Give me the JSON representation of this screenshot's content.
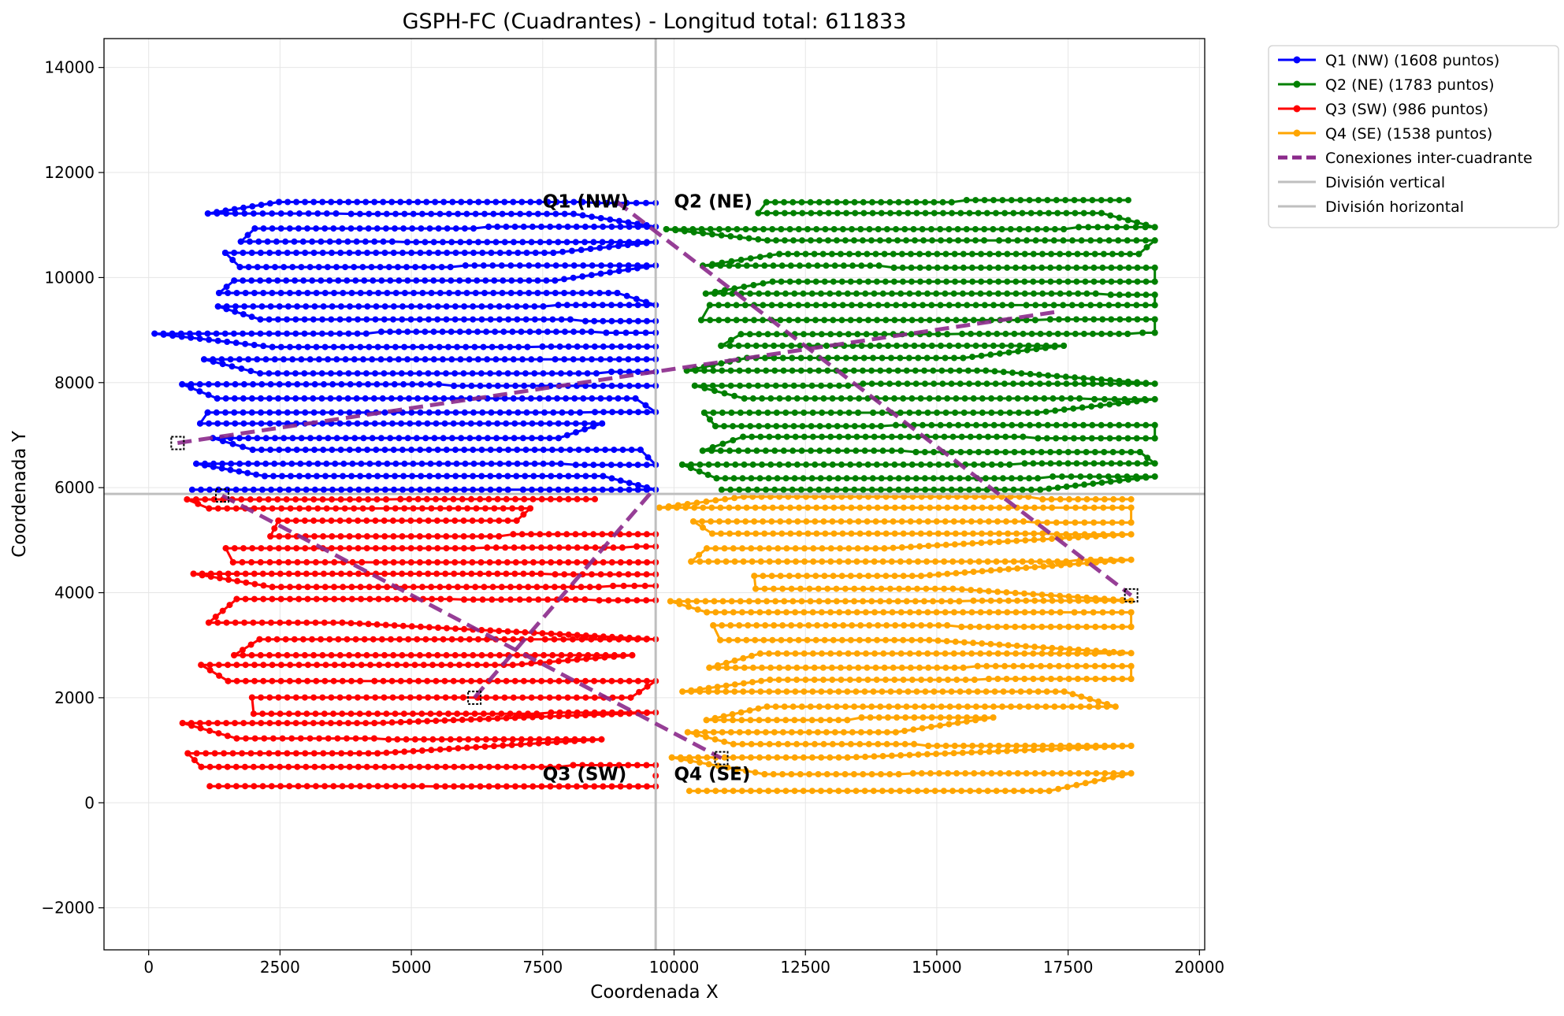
{
  "chart_data": {
    "type": "line",
    "title": "GSPH-FC (Cuadrantes) - Longitud total: 611833",
    "xlabel": "Coordenada X",
    "ylabel": "Coordenada Y",
    "xlim": [
      -850,
      20100
    ],
    "ylim": [
      -2800,
      14550
    ],
    "xticks": [
      0,
      2500,
      5000,
      7500,
      10000,
      12500,
      15000,
      17500,
      20000
    ],
    "xtick_labels": [
      "0",
      "2500",
      "5000",
      "7500",
      "10000",
      "12500",
      "15000",
      "17500",
      "20000"
    ],
    "yticks": [
      -2000,
      0,
      2000,
      4000,
      6000,
      8000,
      10000,
      12000,
      14000
    ],
    "ytick_labels": [
      "−2000",
      "0",
      "2000",
      "4000",
      "6000",
      "8000",
      "10000",
      "12000",
      "14000"
    ],
    "grid": true,
    "legend_position": "outside-right-top",
    "series": [
      {
        "name": "Q1 (NW) (1608 puntos)",
        "color": "#0000ff",
        "style": "line-marker",
        "x_range": [
          100,
          9650
        ],
        "y_range": [
          5900,
          11550
        ],
        "rows": [
          5950,
          6200,
          6450,
          6700,
          6950,
          7200,
          7450,
          7700,
          7950,
          8200,
          8450,
          8700,
          8950,
          9200,
          9450,
          9700,
          9950,
          10200,
          10450,
          10700,
          10950,
          11200,
          11450
        ]
      },
      {
        "name": "Q2 (NE) (1783 puntos)",
        "color": "#008000",
        "style": "line-marker",
        "x_range": [
          9650,
          19150
        ],
        "y_range": [
          5900,
          11550
        ],
        "rows": [
          5950,
          6200,
          6450,
          6700,
          6950,
          7200,
          7450,
          7700,
          7950,
          8200,
          8450,
          8700,
          8950,
          9200,
          9450,
          9700,
          9950,
          10200,
          10450,
          10700,
          10950,
          11200,
          11450
        ]
      },
      {
        "name": "Q3 (SW) (986 puntos)",
        "color": "#ff0000",
        "style": "line-marker",
        "x_range": [
          550,
          9650
        ],
        "y_range": [
          200,
          5880
        ],
        "rows": [
          300,
          700,
          950,
          1200,
          1500,
          1700,
          2000,
          2300,
          2600,
          2800,
          3100,
          3450,
          3850,
          4100,
          4350,
          4600,
          4850,
          5100,
          5350,
          5600,
          5800
        ]
      },
      {
        "name": "Q4 (SE) (1538 puntos)",
        "color": "#ffa500",
        "style": "line-marker",
        "x_range": [
          9650,
          18700
        ],
        "y_range": [
          200,
          5880
        ],
        "rows": [
          250,
          550,
          850,
          1100,
          1350,
          1600,
          1850,
          2100,
          2350,
          2600,
          2850,
          3100,
          3350,
          3600,
          3850,
          4100,
          4350,
          4600,
          4850,
          5100,
          5350,
          5600,
          5800
        ]
      },
      {
        "name": "Conexiones inter-cuadrante",
        "color": "#8b2a8b",
        "style": "dashed",
        "segments": [
          [
            [
              550,
              6850
            ],
            [
              17300,
              9350
            ]
          ],
          [
            [
              8900,
              11450
            ],
            [
              18700,
              3950
            ]
          ],
          [
            [
              1400,
              5850
            ],
            [
              10900,
              850
            ]
          ],
          [
            [
              6200,
              2000
            ],
            [
              9600,
              5950
            ]
          ]
        ],
        "endpoints": [
          [
            550,
            6850
          ],
          [
            1400,
            5850
          ],
          [
            6200,
            2000
          ],
          [
            10900,
            850
          ],
          [
            18700,
            3950
          ]
        ]
      },
      {
        "name": "División vertical",
        "color": "#bfbfbf",
        "style": "vline",
        "x": 9650
      },
      {
        "name": "División horizontal",
        "color": "#bfbfbf",
        "style": "hline",
        "y": 5880
      }
    ],
    "annotations": [
      {
        "text": "Q1 (NW)",
        "x": 7500,
        "y": 11450
      },
      {
        "text": "Q2 (NE)",
        "x": 10000,
        "y": 11450
      },
      {
        "text": "Q3 (SW)",
        "x": 7500,
        "y": 550
      },
      {
        "text": "Q4 (SE)",
        "x": 10000,
        "y": 550
      }
    ]
  }
}
